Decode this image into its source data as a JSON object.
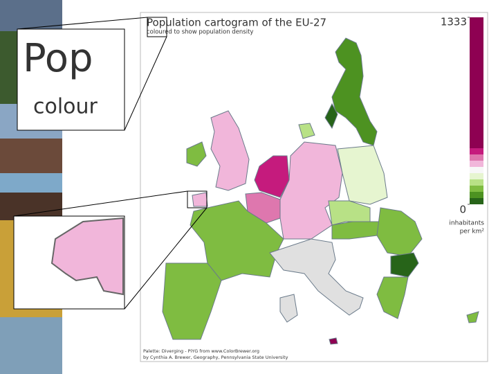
{
  "map": {
    "title": "Population cartogram of the EU-27",
    "subtitle": "coloured to show population density",
    "legend": {
      "max": 1333,
      "min": 0,
      "unit_lines": [
        "inhabitants",
        "per km²"
      ],
      "colors": [
        "#8e0152",
        "#c51b7d",
        "#de77ae",
        "#f1b6da",
        "#f7f7f7",
        "#e6f5d0",
        "#b8e186",
        "#7fbc41",
        "#4d9221",
        "#276419"
      ]
    },
    "credits": [
      "Palette: Diverging - PiYG from www.ColorBrewer.org",
      "by Cynthia A. Brewer, Geography, Pennsylvania State University"
    ],
    "insets": [
      {
        "lines": [
          "Pop",
          "colour"
        ]
      }
    ]
  }
}
